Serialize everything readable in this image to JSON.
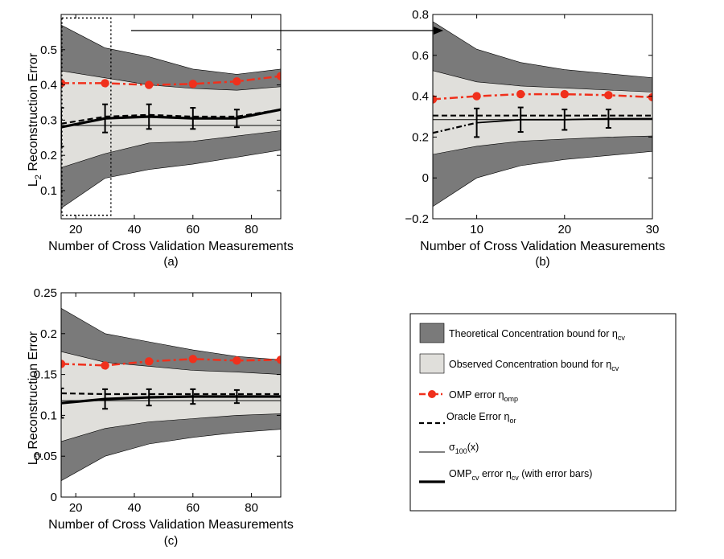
{
  "figure": {
    "arrow_note": "zoom",
    "legend": {
      "theoretical": {
        "label": "Theoretical Concentration bound for ",
        "sym": "η",
        "sub": "cv"
      },
      "observed": {
        "label": "Observed Concentration bound for ",
        "sym": "η",
        "sub": "cv"
      },
      "omp": {
        "label": "OMP error ",
        "sym": "η",
        "sub": "omp"
      },
      "oracle": {
        "label": "Oracle Error ",
        "sym": "η",
        "sub": "or"
      },
      "sigma": {
        "label": "σ",
        "sub": "100",
        "suffix": "(x)"
      },
      "ompcv": {
        "label": "OMP",
        "sub": "cv",
        "mid": "  error ",
        "sym": "η",
        "sub2": "cv",
        "suffix": " (with error bars)"
      }
    },
    "colors": {
      "theoretical_band": "#7a7a7a",
      "observed_band": "#e0dfdb",
      "omp": "#f0301c",
      "line": "#000000"
    }
  },
  "chart_data": [
    {
      "id": "a",
      "caption": "(a)",
      "type": "area",
      "xlabel": "Number of Cross Validation Measurements",
      "ylabel_main": "L",
      "ylabel_sub": "2",
      "ylabel_rest": " Reconstruction Error",
      "xlim": [
        15,
        90
      ],
      "ylim": [
        0.02,
        0.6
      ],
      "xticks": [
        20,
        40,
        60,
        80
      ],
      "yticks": [
        0.1,
        0.2,
        0.3,
        0.4,
        0.5
      ],
      "ytick_labels": [
        "0.1",
        "0.2",
        "0.3",
        "0.4",
        "0.5"
      ],
      "x": [
        15,
        30,
        45,
        60,
        75,
        90
      ],
      "theoretical_upper": [
        0.57,
        0.505,
        0.48,
        0.445,
        0.43,
        0.445
      ],
      "observed_upper": [
        0.44,
        0.42,
        0.4,
        0.39,
        0.385,
        0.395
      ],
      "observed_lower": [
        0.165,
        0.205,
        0.235,
        0.24,
        0.255,
        0.27
      ],
      "theoretical_lower": [
        0.05,
        0.135,
        0.16,
        0.175,
        0.195,
        0.215
      ],
      "omp_error": [
        0.405,
        0.405,
        0.4,
        0.403,
        0.41,
        0.425
      ],
      "oracle_error": [
        0.29,
        0.31,
        0.315,
        0.31,
        0.31,
        0.33
      ],
      "sigma100": 0.285,
      "ompcv_error": [
        0.28,
        0.305,
        0.31,
        0.305,
        0.305,
        0.33
      ],
      "ompcv_errbar": [
        0.055,
        0.04,
        0.035,
        0.03,
        0.025,
        0.0
      ],
      "zoom_box_x": [
        15,
        32
      ],
      "zoom_box_y": [
        0.03,
        0.59
      ]
    },
    {
      "id": "b",
      "caption": "(b)",
      "type": "area",
      "xlabel": "Number of Cross Validation Measurements",
      "xlim": [
        5,
        30
      ],
      "ylim": [
        -0.2,
        0.8
      ],
      "xticks": [
        10,
        20,
        30
      ],
      "yticks": [
        -0.2,
        0,
        0.2,
        0.4,
        0.6,
        0.8
      ],
      "ytick_labels": [
        "−0.2",
        "0",
        "0.2",
        "0.4",
        "0.6",
        "0.8"
      ],
      "x": [
        5,
        10,
        15,
        20,
        25,
        30
      ],
      "theoretical_upper": [
        0.765,
        0.63,
        0.565,
        0.53,
        0.51,
        0.49
      ],
      "observed_upper": [
        0.525,
        0.47,
        0.45,
        0.44,
        0.43,
        0.42
      ],
      "observed_lower": [
        0.115,
        0.155,
        0.18,
        0.19,
        0.2,
        0.205
      ],
      "theoretical_lower": [
        -0.14,
        0.0,
        0.06,
        0.09,
        0.11,
        0.13
      ],
      "omp_error": [
        0.385,
        0.4,
        0.41,
        0.41,
        0.405,
        0.395
      ],
      "oracle_error": [
        0.305,
        0.305,
        0.305,
        0.305,
        0.305,
        0.305
      ],
      "sigma100": 0.285,
      "ompcv_error": [
        0.22,
        0.27,
        0.285,
        0.285,
        0.29,
        0.29
      ],
      "ompcv_errbar": [
        0.0,
        0.07,
        0.06,
        0.05,
        0.045,
        0.0
      ],
      "ompcv_dashdot": true
    },
    {
      "id": "c",
      "caption": "(c)",
      "type": "area",
      "xlabel": "Number of Cross Validation Measurements",
      "ylabel_main": "L",
      "ylabel_sub": "2",
      "ylabel_rest": " Reconstruction Error",
      "xlim": [
        15,
        90
      ],
      "ylim": [
        0,
        0.25
      ],
      "xticks": [
        20,
        40,
        60,
        80
      ],
      "yticks": [
        0,
        0.05,
        0.1,
        0.15,
        0.2,
        0.25
      ],
      "ytick_labels": [
        "0",
        "0.05",
        "0.1",
        "0.15",
        "0.2",
        "0.25"
      ],
      "x": [
        15,
        30,
        45,
        60,
        75,
        90
      ],
      "theoretical_upper": [
        0.231,
        0.2,
        0.19,
        0.18,
        0.172,
        0.168
      ],
      "observed_upper": [
        0.178,
        0.165,
        0.16,
        0.155,
        0.153,
        0.15
      ],
      "observed_lower": [
        0.068,
        0.084,
        0.092,
        0.096,
        0.1,
        0.102
      ],
      "theoretical_lower": [
        0.02,
        0.05,
        0.065,
        0.073,
        0.079,
        0.083
      ],
      "omp_error": [
        0.163,
        0.161,
        0.166,
        0.169,
        0.167,
        0.168
      ],
      "oracle_error": [
        0.127,
        0.126,
        0.126,
        0.126,
        0.126,
        0.126
      ],
      "sigma100": 0.118,
      "ompcv_error": [
        0.115,
        0.12,
        0.122,
        0.123,
        0.123,
        0.123
      ],
      "ompcv_errbar": [
        0.018,
        0.012,
        0.01,
        0.009,
        0.008,
        0.0
      ]
    }
  ]
}
